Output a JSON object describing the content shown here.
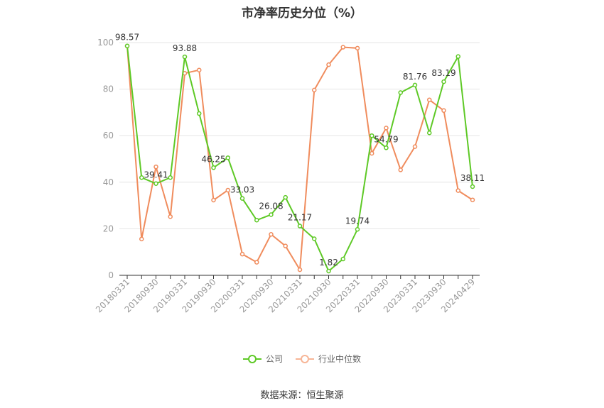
{
  "chart_data": {
    "type": "line",
    "title": "市净率历史分位（%）",
    "source": "数据来源：恒生聚源",
    "xlabel": "",
    "ylabel": "",
    "ylim": [
      0,
      100
    ],
    "yticks": [
      0,
      20,
      40,
      60,
      80,
      100
    ],
    "grid": true,
    "legend_position": "bottom",
    "x": [
      "20180331",
      "20180630",
      "20180930",
      "20181231",
      "20190331",
      "20190630",
      "20190930",
      "20191231",
      "20200331",
      "20200630",
      "20200930",
      "20201231",
      "20210331",
      "20210630",
      "20210930",
      "20211231",
      "20220331",
      "20220630",
      "20220930",
      "20221231",
      "20230331",
      "20230630",
      "20230930",
      "20231231",
      "20240429"
    ],
    "x_tick_labels": [
      "20180331",
      "20180930",
      "20190331",
      "20190930",
      "20200331",
      "20200930",
      "20210331",
      "20210930",
      "20220331",
      "20220930",
      "20230331",
      "20230930",
      "20240429"
    ],
    "series": [
      {
        "name": "公司",
        "color": "#5ec926",
        "values": [
          98.57,
          42,
          39.41,
          42,
          93.88,
          69.5,
          46.25,
          50.5,
          33.03,
          23.7,
          26.08,
          33.5,
          21.17,
          15.7,
          1.82,
          7,
          19.74,
          60,
          54.79,
          78.5,
          81.76,
          61.2,
          83.19,
          94,
          38.11
        ],
        "labels": [
          "98.57",
          null,
          "39.41",
          null,
          "93.88",
          null,
          "46.25",
          null,
          "33.03",
          null,
          "26.08",
          null,
          "21.17",
          null,
          "1.82",
          null,
          "19.74",
          null,
          "54.79",
          null,
          "81.76",
          null,
          "83.19",
          null,
          "38.11"
        ]
      },
      {
        "name": "行业中位数",
        "color": "#f08c5d",
        "values": [
          98.5,
          15.6,
          46.6,
          25.2,
          86.8,
          88.2,
          32.3,
          36.6,
          9.1,
          5.6,
          17.6,
          12.6,
          2.4,
          79.6,
          90.5,
          98,
          97.6,
          52.4,
          63.3,
          45.3,
          55.3,
          75.4,
          70.8,
          36.4,
          32.4
        ]
      }
    ]
  }
}
